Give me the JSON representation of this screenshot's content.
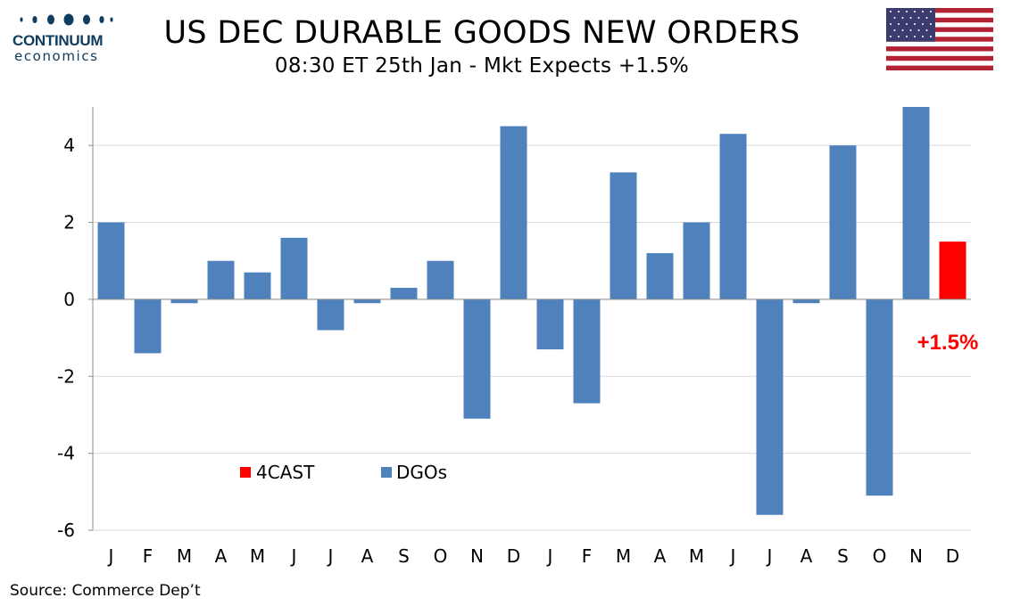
{
  "header": {
    "logo_name": "CONTINUUM",
    "logo_sub": "economics",
    "title": "US DEC DURABLE GOODS NEW ORDERS",
    "subtitle": "08:30 ET 25th Jan - Mkt Expects +1.5%"
  },
  "footer": {
    "source": "Source: Commerce Dep’t"
  },
  "colors": {
    "dgos": "#4f81bd",
    "forecast": "#ff0000",
    "logo": "#0f3d60"
  },
  "icons": {
    "flag": "us-flag-icon",
    "logo": "continuum-economics-logo"
  },
  "chart_data": {
    "type": "bar",
    "categories": [
      "J",
      "F",
      "M",
      "A",
      "M",
      "J",
      "J",
      "A",
      "S",
      "O",
      "N",
      "D",
      "J",
      "F",
      "M",
      "A",
      "M",
      "J",
      "J",
      "A",
      "S",
      "O",
      "N",
      "D"
    ],
    "series": [
      {
        "name": "DGOs",
        "color": "#4f81bd",
        "values": [
          2.0,
          -1.4,
          -0.1,
          1.0,
          0.7,
          1.6,
          -0.8,
          -0.1,
          0.3,
          1.0,
          -3.1,
          4.5,
          -1.3,
          -2.7,
          3.3,
          1.2,
          2.0,
          4.3,
          -5.6,
          -0.1,
          4.0,
          -5.1,
          5.0,
          null
        ]
      },
      {
        "name": "4CAST",
        "color": "#ff0000",
        "values": [
          null,
          null,
          null,
          null,
          null,
          null,
          null,
          null,
          null,
          null,
          null,
          null,
          null,
          null,
          null,
          null,
          null,
          null,
          null,
          null,
          null,
          null,
          null,
          1.5
        ]
      }
    ],
    "ylim": [
      -6,
      5
    ],
    "yticks": [
      4,
      2,
      0,
      -2,
      -4,
      -6
    ],
    "gridlines": true,
    "legend": {
      "placement": "bottom-left",
      "entries": [
        "4CAST",
        "DGOs"
      ]
    },
    "annotation": "+1.5%"
  }
}
